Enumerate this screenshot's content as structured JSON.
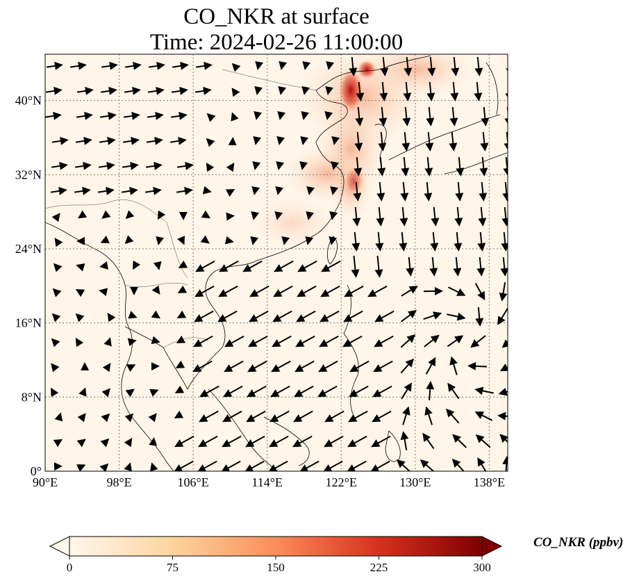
{
  "title": {
    "line1": "CO_NKR at surface",
    "line2": "Time: 2024-02-26 11:00:00"
  },
  "map": {
    "projection": "PlateCarree",
    "lon_range": [
      90,
      140
    ],
    "lat_range": [
      0,
      45
    ],
    "gridlines": "dotted",
    "lon_ticks": [
      "90°E",
      "98°E",
      "106°E",
      "114°E",
      "122°E",
      "130°E",
      "138°E"
    ],
    "lat_ticks": [
      "0°",
      "8°N",
      "16°N",
      "24°N",
      "32°N",
      "40°N"
    ],
    "field": "CO_NKR",
    "wind_vectors": "shown"
  },
  "colorbar": {
    "label": "CO_NKR (ppbv)",
    "ticks": [
      "0",
      "75",
      "150",
      "225",
      "300"
    ],
    "range": [
      0,
      300
    ],
    "extend": "both",
    "cmap": "OrRd",
    "colors": [
      "#fff7ec",
      "#fdd49e",
      "#fc8d59",
      "#d7301f",
      "#7f0000"
    ]
  }
}
